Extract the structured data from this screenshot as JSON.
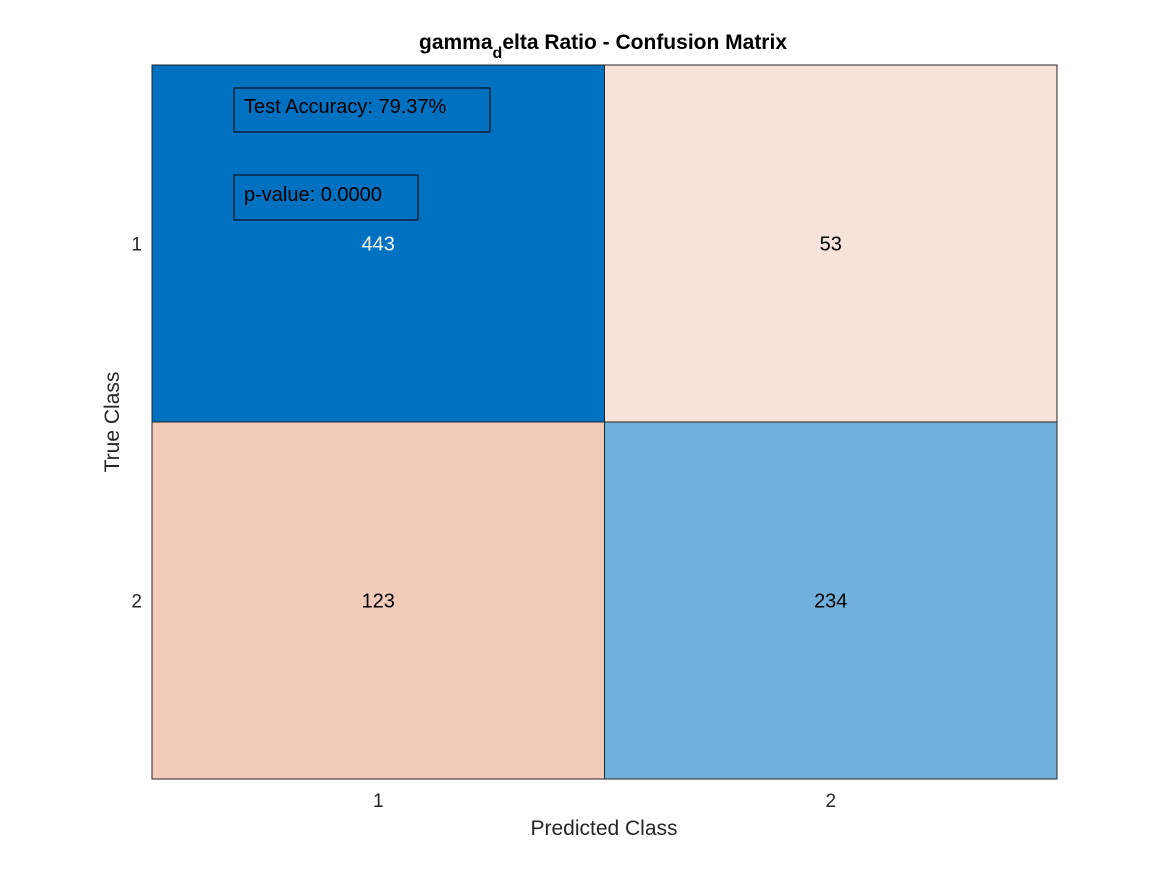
{
  "chart_data": {
    "type": "heatmap",
    "title_main": "gamma",
    "title_sub": "d",
    "title_rest": "elta Ratio - Confusion Matrix",
    "xlabel": "Predicted Class",
    "ylabel": "True Class",
    "x_categories": [
      "1",
      "2"
    ],
    "y_categories": [
      "1",
      "2"
    ],
    "values": [
      [
        443,
        53
      ],
      [
        123,
        234
      ]
    ],
    "cell_colors": [
      [
        "#0070C0",
        "#F8E3DA"
      ],
      [
        "#F3CBBB",
        "#72B0DC"
      ]
    ],
    "cell_text_colors": [
      [
        "#FFFFFF",
        "#000000"
      ],
      [
        "#000000",
        "#000000"
      ]
    ],
    "annotations": [
      {
        "text": "Test Accuracy: 79.37%"
      },
      {
        "text": "p-value: 0.0000"
      }
    ],
    "grid": false,
    "legend": "none"
  }
}
